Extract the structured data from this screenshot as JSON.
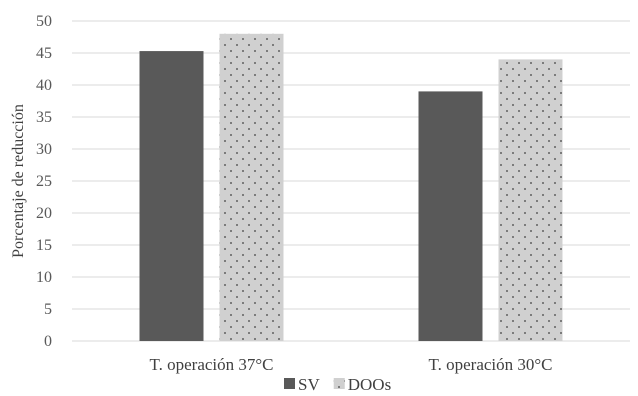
{
  "chart_data": {
    "type": "bar",
    "title": "",
    "xlabel": "",
    "ylabel": "Porcentaje de reducción",
    "categories": [
      "T. operación 37°C",
      "T. operación 30°C"
    ],
    "series": [
      {
        "name": "SV",
        "values": [
          45.3,
          39.0
        ],
        "color": "#595959",
        "pattern": "solid"
      },
      {
        "name": "DOOs",
        "values": [
          48.0,
          44.0
        ],
        "color": "#d0d0d0",
        "pattern": "dots"
      }
    ],
    "ylim": [
      0,
      50
    ],
    "yticks": [
      "0",
      "5",
      "10",
      "15",
      "20",
      "25",
      "30",
      "35",
      "40",
      "45",
      "50"
    ],
    "grid": true,
    "legend": "bottom-center",
    "gridline_color": "#d9d9d9"
  }
}
